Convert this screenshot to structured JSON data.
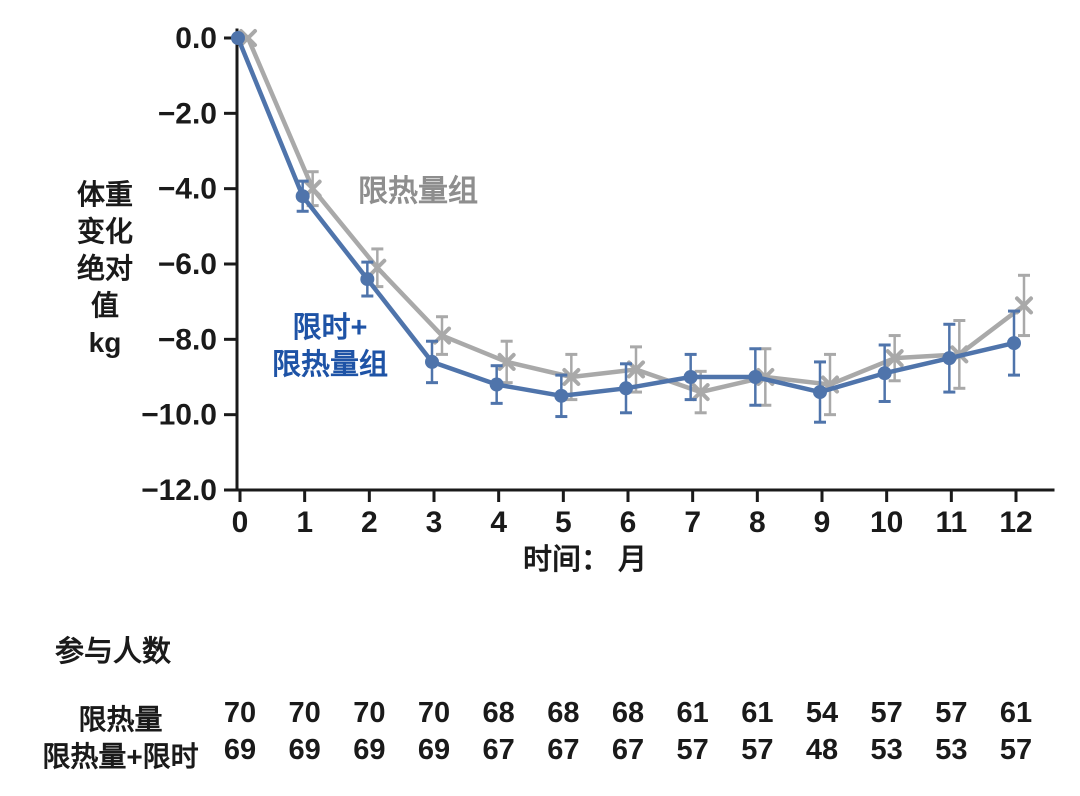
{
  "chart_data": {
    "type": "line",
    "title": "",
    "xlabel": "时间： 月",
    "ylabel": "体重变化绝对值 kg",
    "ylabel_lines": [
      "体重",
      "变化",
      "绝对",
      "值",
      "kg"
    ],
    "x": [
      0,
      1,
      2,
      3,
      4,
      5,
      6,
      7,
      8,
      9,
      10,
      11,
      12
    ],
    "xticks": [
      0,
      1,
      2,
      3,
      4,
      5,
      6,
      7,
      8,
      9,
      10,
      11,
      12
    ],
    "ylim": [
      -12,
      0
    ],
    "yticks": [
      0,
      -2,
      -4,
      -6,
      -8,
      -10,
      -12
    ],
    "ytick_labels": [
      "0.0",
      "−2.0",
      "−4.0",
      "−6.0",
      "−8.0",
      "−10.0",
      "−12.0"
    ],
    "grid": false,
    "legend_position": "in-plot-text-labels",
    "series": [
      {
        "name": "限热量组",
        "color": "#a9a9a9",
        "marker": "x",
        "values": [
          0.0,
          -4.0,
          -6.1,
          -7.9,
          -8.6,
          -9.0,
          -8.8,
          -9.4,
          -9.0,
          -9.2,
          -8.5,
          -8.4,
          -7.1
        ],
        "errors": [
          0,
          0.45,
          0.5,
          0.5,
          0.55,
          0.6,
          0.6,
          0.55,
          0.75,
          0.8,
          0.6,
          0.9,
          0.8
        ]
      },
      {
        "name": "限时+限热量组",
        "color": "#4f74ab",
        "marker": "circle",
        "values": [
          0.0,
          -4.2,
          -6.4,
          -8.6,
          -9.2,
          -9.5,
          -9.3,
          -9.0,
          -9.0,
          -9.4,
          -8.9,
          -8.5,
          -8.1
        ],
        "errors": [
          0,
          0.4,
          0.45,
          0.55,
          0.5,
          0.55,
          0.65,
          0.6,
          0.75,
          0.8,
          0.75,
          0.9,
          0.85
        ]
      }
    ]
  },
  "annotations": {
    "gray_label": "限热量组",
    "blue_label_line1": "限时+",
    "blue_label_line2": "限热量组"
  },
  "participants": {
    "heading": "参与人数",
    "rows": [
      {
        "label": "限热量",
        "counts": [
          70,
          70,
          70,
          70,
          68,
          68,
          68,
          61,
          61,
          54,
          57,
          57,
          61
        ]
      },
      {
        "label": "限热量+限时",
        "counts": [
          69,
          69,
          69,
          69,
          67,
          67,
          67,
          57,
          57,
          48,
          53,
          53,
          57
        ]
      }
    ]
  },
  "colors": {
    "text": "#1a1a1a",
    "gray": "#a9a9a9",
    "gray_text": "#8e8e8e",
    "blue": "#4f74ab",
    "blue_text": "#1e53a6"
  }
}
